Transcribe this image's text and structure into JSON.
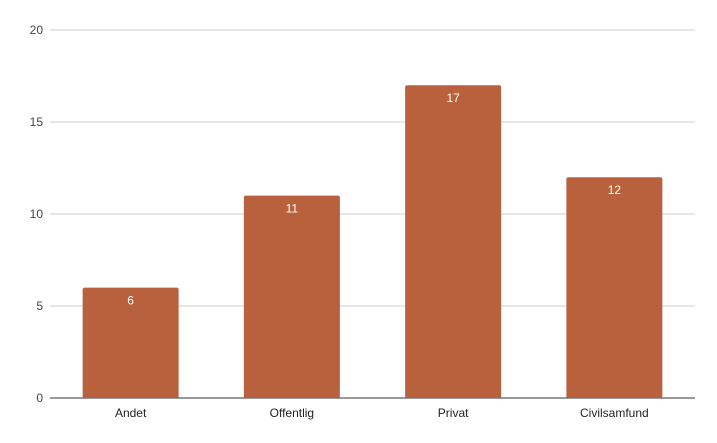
{
  "chart_data": {
    "type": "bar",
    "categories": [
      "Andet",
      "Offentlig",
      "Privat",
      "Civilsamfund"
    ],
    "values": [
      6,
      11,
      17,
      12
    ],
    "data_labels": [
      "6",
      "11",
      "17",
      "12"
    ],
    "ylim": [
      0,
      20
    ],
    "yticks": [
      0,
      5,
      10,
      15,
      20
    ],
    "title": "",
    "xlabel": "",
    "ylabel": "",
    "grid": true,
    "legend": "none",
    "bar_color": "#b9613d"
  }
}
